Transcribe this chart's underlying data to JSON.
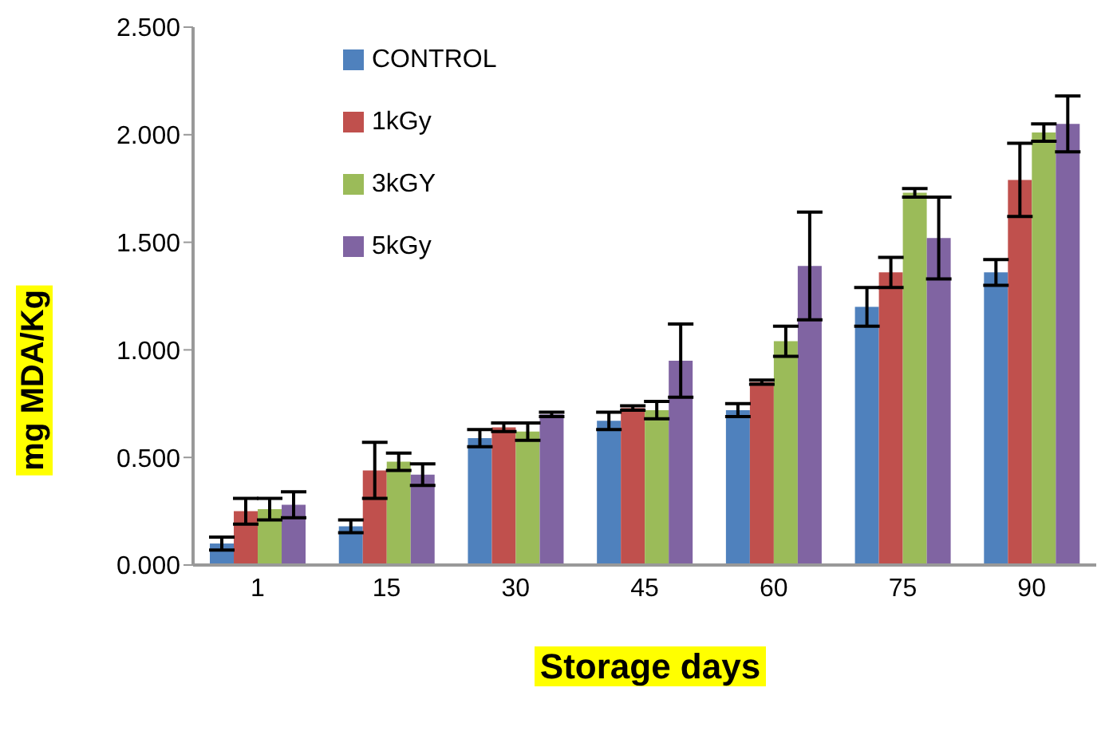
{
  "chart_data": {
    "type": "bar",
    "xlabel": "Storage days",
    "ylabel": "mg MDA/Kg",
    "categories": [
      "1",
      "15",
      "30",
      "45",
      "60",
      "75",
      "90"
    ],
    "series": [
      {
        "name": "CONTROL",
        "color": "#4f81bd",
        "values": [
          0.1,
          0.18,
          0.59,
          0.67,
          0.72,
          1.2,
          1.36
        ],
        "errors": [
          0.03,
          0.03,
          0.04,
          0.04,
          0.03,
          0.09,
          0.06
        ]
      },
      {
        "name": "1kGy",
        "color": "#c0504d",
        "values": [
          0.25,
          0.44,
          0.64,
          0.73,
          0.85,
          1.36,
          1.79
        ],
        "errors": [
          0.06,
          0.13,
          0.02,
          0.01,
          0.01,
          0.07,
          0.17
        ]
      },
      {
        "name": "3kGY",
        "color": "#9bbb59",
        "values": [
          0.26,
          0.48,
          0.62,
          0.72,
          1.04,
          1.73,
          2.01
        ],
        "errors": [
          0.05,
          0.04,
          0.04,
          0.04,
          0.07,
          0.02,
          0.04
        ]
      },
      {
        "name": "5kGy",
        "color": "#8064a2",
        "values": [
          0.28,
          0.42,
          0.7,
          0.95,
          1.39,
          1.52,
          2.05
        ],
        "errors": [
          0.06,
          0.05,
          0.01,
          0.17,
          0.25,
          0.19,
          0.13
        ]
      }
    ],
    "ylim": [
      0,
      2.5
    ],
    "yticks": [
      {
        "value": 0,
        "label": "0.000"
      },
      {
        "value": 0.5,
        "label": "0.500"
      },
      {
        "value": 1,
        "label": "1.000"
      },
      {
        "value": 1.5,
        "label": "1.500"
      },
      {
        "value": 2,
        "label": "2.000"
      },
      {
        "value": 2.5,
        "label": "2.500"
      }
    ],
    "legend": "top left"
  }
}
